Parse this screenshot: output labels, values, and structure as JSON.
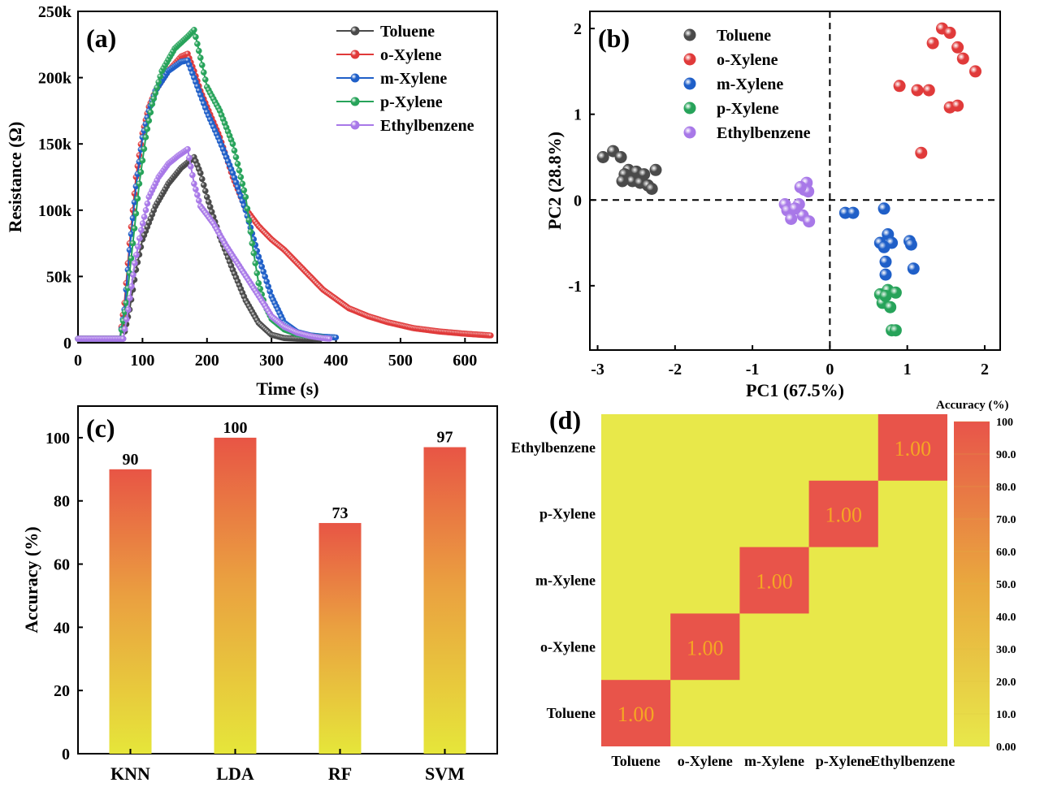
{
  "chart_data": [
    {
      "panel": "(a)",
      "type": "line",
      "xlabel": "Time (s)",
      "ylabel": "Resistance (Ω)",
      "xlim": [
        0,
        650
      ],
      "ylim": [
        0,
        250000
      ],
      "xticks": [
        0,
        100,
        200,
        300,
        400,
        500,
        600
      ],
      "yticks": [
        0,
        50000,
        100000,
        150000,
        200000,
        250000
      ],
      "ytick_labels": [
        "0",
        "50k",
        "100k",
        "150k",
        "200k",
        "250k"
      ],
      "legend_position": "top-right",
      "series": [
        {
          "name": "Toluene",
          "color": "#4a4a4a",
          "points": [
            [
              0,
              3000
            ],
            [
              70,
              3000
            ],
            [
              80,
              25000
            ],
            [
              90,
              55000
            ],
            [
              100,
              78000
            ],
            [
              120,
              103000
            ],
            [
              140,
              120000
            ],
            [
              160,
              132000
            ],
            [
              180,
              140000
            ],
            [
              190,
              128000
            ],
            [
              200,
              110000
            ],
            [
              220,
              80000
            ],
            [
              240,
              55000
            ],
            [
              260,
              32000
            ],
            [
              280,
              15000
            ],
            [
              300,
              6000
            ],
            [
              320,
              3500
            ],
            [
              340,
              3000
            ],
            [
              360,
              2800
            ],
            [
              375,
              2500
            ]
          ]
        },
        {
          "name": "o-Xylene",
          "color": "#e03a3a",
          "points": [
            [
              0,
              3000
            ],
            [
              65,
              3000
            ],
            [
              72,
              30000
            ],
            [
              80,
              75000
            ],
            [
              90,
              125000
            ],
            [
              100,
              158000
            ],
            [
              110,
              178000
            ],
            [
              120,
              190000
            ],
            [
              140,
              205000
            ],
            [
              160,
              216000
            ],
            [
              170,
              218000
            ],
            [
              180,
              205000
            ],
            [
              190,
              190000
            ],
            [
              200,
              178000
            ],
            [
              220,
              155000
            ],
            [
              240,
              125000
            ],
            [
              260,
              101000
            ],
            [
              280,
              88000
            ],
            [
              300,
              78000
            ],
            [
              320,
              70000
            ],
            [
              340,
              60000
            ],
            [
              360,
              50000
            ],
            [
              380,
              40000
            ],
            [
              400,
              33000
            ],
            [
              420,
              26000
            ],
            [
              450,
              20000
            ],
            [
              480,
              15500
            ],
            [
              520,
              11000
            ],
            [
              560,
              8500
            ],
            [
              600,
              6800
            ],
            [
              640,
              5500
            ]
          ]
        },
        {
          "name": "m-Xylene",
          "color": "#1f5fc8",
          "points": [
            [
              0,
              3000
            ],
            [
              65,
              3000
            ],
            [
              72,
              25000
            ],
            [
              80,
              70000
            ],
            [
              90,
              118000
            ],
            [
              100,
              155000
            ],
            [
              110,
              175000
            ],
            [
              120,
              190000
            ],
            [
              140,
              205000
            ],
            [
              160,
              212000
            ],
            [
              170,
              213000
            ],
            [
              180,
              200000
            ],
            [
              190,
              187000
            ],
            [
              200,
              174000
            ],
            [
              220,
              152000
            ],
            [
              240,
              128000
            ],
            [
              260,
              100000
            ],
            [
              280,
              65000
            ],
            [
              300,
              35000
            ],
            [
              320,
              15000
            ],
            [
              340,
              8000
            ],
            [
              360,
              5500
            ],
            [
              380,
              4500
            ],
            [
              400,
              4000
            ]
          ]
        },
        {
          "name": "p-Xylene",
          "color": "#27a35a",
          "points": [
            [
              0,
              3000
            ],
            [
              65,
              3000
            ],
            [
              75,
              30000
            ],
            [
              85,
              75000
            ],
            [
              95,
              120000
            ],
            [
              105,
              155000
            ],
            [
              115,
              180000
            ],
            [
              130,
              205000
            ],
            [
              150,
              222000
            ],
            [
              170,
              231000
            ],
            [
              180,
              236000
            ],
            [
              190,
              215000
            ],
            [
              200,
              193000
            ],
            [
              220,
              175000
            ],
            [
              240,
              150000
            ],
            [
              260,
              110000
            ],
            [
              270,
              75000
            ],
            [
              280,
              45000
            ],
            [
              290,
              28000
            ],
            [
              300,
              18000
            ],
            [
              320,
              10000
            ],
            [
              340,
              6500
            ],
            [
              360,
              5000
            ],
            [
              380,
              4000
            ]
          ]
        },
        {
          "name": "Ethylbenzene",
          "color": "#a878e8",
          "points": [
            [
              0,
              3000
            ],
            [
              70,
              3000
            ],
            [
              78,
              25000
            ],
            [
              88,
              60000
            ],
            [
              98,
              85000
            ],
            [
              110,
              110000
            ],
            [
              125,
              125000
            ],
            [
              140,
              135000
            ],
            [
              155,
              141000
            ],
            [
              170,
              146000
            ],
            [
              180,
              120000
            ],
            [
              190,
              103000
            ],
            [
              210,
              90000
            ],
            [
              230,
              73000
            ],
            [
              250,
              58000
            ],
            [
              270,
              43000
            ],
            [
              290,
              28000
            ],
            [
              300,
              20000
            ],
            [
              320,
              12000
            ],
            [
              340,
              7500
            ],
            [
              360,
              5000
            ],
            [
              380,
              3500
            ],
            [
              390,
              3000
            ]
          ]
        }
      ]
    },
    {
      "panel": "(b)",
      "type": "scatter",
      "xlabel": "PC1 (67.5%)",
      "ylabel": "PC2 (28.8%)",
      "xlim": [
        -3.1,
        2.2
      ],
      "ylim": [
        -1.75,
        2.2
      ],
      "xticks": [
        -3,
        -2,
        -1,
        0,
        1,
        2
      ],
      "yticks": [
        -1,
        0,
        1,
        2
      ],
      "legend_position": "top-left",
      "series": [
        {
          "name": "Toluene",
          "color": "#4a4a4a",
          "points": [
            [
              -2.93,
              0.5
            ],
            [
              -2.8,
              0.57
            ],
            [
              -2.7,
              0.5
            ],
            [
              -2.6,
              0.35
            ],
            [
              -2.5,
              0.33
            ],
            [
              -2.4,
              0.3
            ],
            [
              -2.25,
              0.35
            ],
            [
              -2.65,
              0.3
            ],
            [
              -2.55,
              0.22
            ],
            [
              -2.45,
              0.2
            ],
            [
              -2.35,
              0.17
            ],
            [
              -2.3,
              0.13
            ],
            [
              -2.68,
              0.22
            ]
          ]
        },
        {
          "name": "o-Xylene",
          "color": "#e03a3a",
          "points": [
            [
              1.45,
              2.0
            ],
            [
              1.55,
              1.95
            ],
            [
              1.33,
              1.83
            ],
            [
              1.65,
              1.78
            ],
            [
              1.72,
              1.65
            ],
            [
              1.88,
              1.5
            ],
            [
              0.9,
              1.33
            ],
            [
              1.13,
              1.28
            ],
            [
              1.28,
              1.28
            ],
            [
              1.55,
              1.08
            ],
            [
              1.65,
              1.1
            ],
            [
              1.18,
              0.55
            ]
          ]
        },
        {
          "name": "m-Xylene",
          "color": "#1f5fc8",
          "points": [
            [
              0.2,
              -0.15
            ],
            [
              0.3,
              -0.15
            ],
            [
              0.7,
              -0.1
            ],
            [
              0.65,
              -0.5
            ],
            [
              0.75,
              -0.4
            ],
            [
              0.8,
              -0.5
            ],
            [
              1.03,
              -0.48
            ],
            [
              1.05,
              -0.52
            ],
            [
              0.7,
              -0.55
            ],
            [
              0.72,
              -0.72
            ],
            [
              1.08,
              -0.8
            ],
            [
              0.72,
              -0.87
            ]
          ]
        },
        {
          "name": "p-Xylene",
          "color": "#27a35a",
          "points": [
            [
              0.65,
              -1.1
            ],
            [
              0.75,
              -1.05
            ],
            [
              0.85,
              -1.08
            ],
            [
              0.68,
              -1.2
            ],
            [
              0.78,
              -1.25
            ],
            [
              0.72,
              -1.12
            ],
            [
              0.8,
              -1.52
            ],
            [
              0.85,
              -1.52
            ]
          ]
        },
        {
          "name": "Ethylbenzene",
          "color": "#a878e8",
          "points": [
            [
              -0.58,
              -0.05
            ],
            [
              -0.55,
              -0.12
            ],
            [
              -0.4,
              -0.05
            ],
            [
              -0.3,
              0.2
            ],
            [
              -0.33,
              0.12
            ],
            [
              -0.28,
              0.1
            ],
            [
              -0.38,
              0.15
            ],
            [
              -0.5,
              -0.22
            ],
            [
              -0.35,
              -0.18
            ],
            [
              -0.27,
              -0.25
            ],
            [
              -0.45,
              -0.1
            ]
          ]
        }
      ]
    },
    {
      "panel": "(c)",
      "type": "bar",
      "xlabel": "",
      "ylabel": "Accuracy (%)",
      "ylim": [
        0,
        110
      ],
      "yticks": [
        0,
        20,
        40,
        60,
        80,
        100
      ],
      "categories": [
        "KNN",
        "LDA",
        "RF",
        "SVM"
      ],
      "values": [
        90,
        100,
        73,
        97
      ],
      "data_labels": [
        "90",
        "100",
        "73",
        "97"
      ],
      "gradient": [
        "#e6e63a",
        "#e85545"
      ]
    },
    {
      "panel": "(d)",
      "type": "heatmap",
      "x_categories": [
        "Toluene",
        "o-Xylene",
        "m-Xylene",
        "p-Xylene",
        "Ethylbenzene"
      ],
      "y_categories": [
        "Toluene",
        "o-Xylene",
        "m-Xylene",
        "p-Xylene",
        "Ethylbenzene"
      ],
      "diagonal_value": "1.00",
      "colorbar_title": "Accuracy (%)",
      "colorbar_ticks": [
        "0.00",
        "10.0",
        "20.0",
        "30.0",
        "40.0",
        "50.0",
        "60.0",
        "70.0",
        "80.0",
        "90.0",
        "100"
      ],
      "low_color": "#e8e84a",
      "high_color": "#e8544a",
      "cell_text_color": "#f5a623"
    }
  ]
}
